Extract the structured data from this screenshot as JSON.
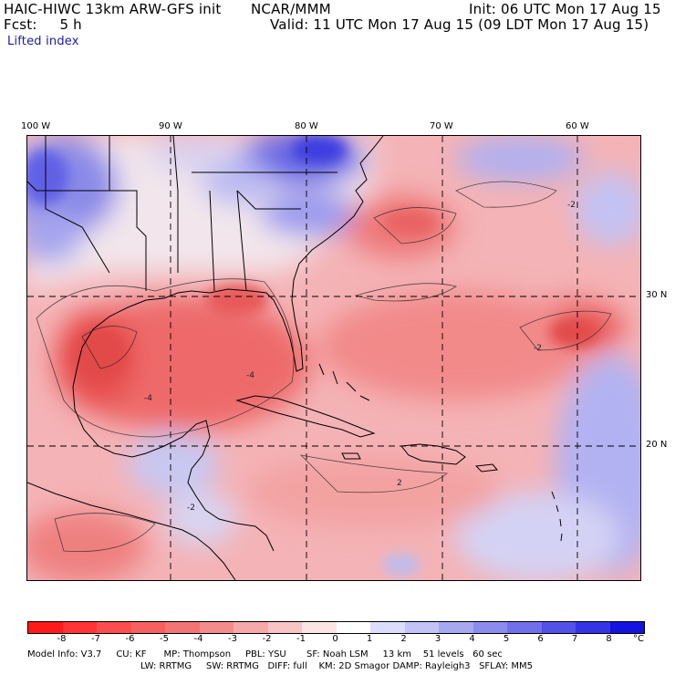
{
  "header": {
    "line1_left": "HAIC-HIWC 13km ARW-GFS init",
    "line1_mid": "NCAR/MMM",
    "line1_right": "Init: 06 UTC Mon 17 Aug 15",
    "line2_left": "Fcst:     5 h",
    "line2_right": "Valid: 11 UTC Mon 17 Aug 15 (09 LDT Mon 17 Aug 15)",
    "field": "Lifted index"
  },
  "map": {
    "lon_labels": [
      "100 W",
      "90 W",
      "80 W",
      "70 W",
      "60 W"
    ],
    "lat_labels": [
      "30 N",
      "20 N"
    ],
    "contour_labels": [
      "-4",
      "-2",
      "-2",
      "2",
      "-2",
      "-4"
    ]
  },
  "colorbar": {
    "unit": "°C",
    "ticks": [
      "-8",
      "-7",
      "-6",
      "-5",
      "-4",
      "-3",
      "-2",
      "-1",
      "0",
      "1",
      "2",
      "3",
      "4",
      "5",
      "6",
      "7",
      "8"
    ],
    "colors": [
      "#ff1a1a",
      "#ff3535",
      "#ff4d4d",
      "#f66060",
      "#f37474",
      "#f58c8c",
      "#f7a8a8",
      "#f9c4c4",
      "#fde4e4",
      "#ffffff",
      "#dcdcff",
      "#c3c3f7",
      "#a8a8f2",
      "#8c8cee",
      "#7070ea",
      "#5252e8",
      "#3434e6",
      "#1414e0"
    ]
  },
  "footer": {
    "line1": "Model Info: V3.7     CU: KF      MP: Thompson     PBL: YSU       SF: Noah LSM     13 km    51 levels   60 sec",
    "line2": "LW: RRTMG     SW: RRTMG   DIFF: full    KM: 2D Smagor DAMP: Rayleigh3   SFLAY: MM5"
  }
}
